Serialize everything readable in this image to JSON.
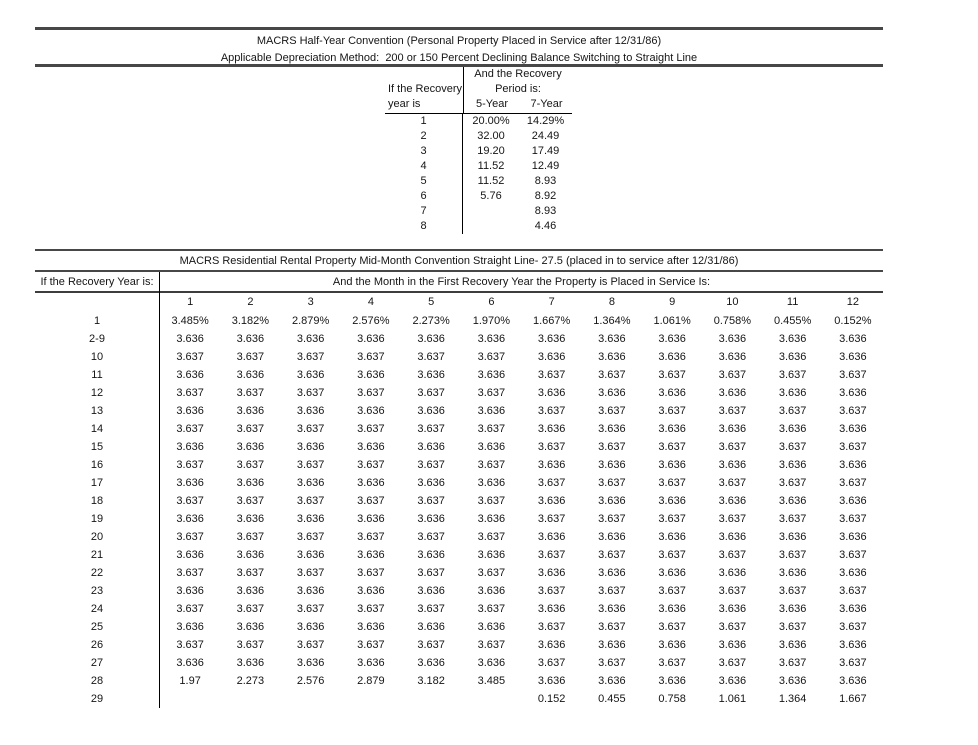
{
  "page": {
    "background": "#ffffff",
    "text_color": "#151515",
    "thick_rule_color": "#474747",
    "thin_line_color": "#000000"
  },
  "macrs_half_year": {
    "title": "MACRS Half-Year Convention (Personal Property Placed in Service after 12/31/86)",
    "method_line": "Applicable Depreciation Method:  200 or 150 Percent Declining Balance Switching to Straight Line",
    "row_header_line1": "If the Recovery",
    "row_header_line2": "year is",
    "col_header_line1": "And the Recovery",
    "col_header_line2": "Period is:",
    "columns": [
      "5-Year",
      "7-Year"
    ],
    "rows": [
      [
        "1",
        "20.00%",
        "14.29%"
      ],
      [
        "2",
        "32.00",
        "24.49"
      ],
      [
        "3",
        "19.20",
        "17.49"
      ],
      [
        "4",
        "11.52",
        "12.49"
      ],
      [
        "5",
        "11.52",
        "8.93"
      ],
      [
        "6",
        "5.76",
        "8.92"
      ],
      [
        "7",
        "",
        "8.93"
      ],
      [
        "8",
        "",
        "4.46"
      ]
    ]
  },
  "macrs_residential": {
    "title": "MACRS Residential Rental Property Mid-Month Convention Straight Line- 27.5 (placed in to service after 12/31/86)",
    "row_header": "If the Recovery Year is:",
    "col_header": "And the Month in the First Recovery Year the Property is Placed in Service Is:",
    "months": [
      "1",
      "2",
      "3",
      "4",
      "5",
      "6",
      "7",
      "8",
      "9",
      "10",
      "11",
      "12"
    ],
    "rows": [
      [
        "1",
        "3.485%",
        "3.182%",
        "2.879%",
        "2.576%",
        "2.273%",
        "1.970%",
        "1.667%",
        "1.364%",
        "1.061%",
        "0.758%",
        "0.455%",
        "0.152%"
      ],
      [
        "2-9",
        "3.636",
        "3.636",
        "3.636",
        "3.636",
        "3.636",
        "3.636",
        "3.636",
        "3.636",
        "3.636",
        "3.636",
        "3.636",
        "3.636"
      ],
      [
        "10",
        "3.637",
        "3.637",
        "3.637",
        "3.637",
        "3.637",
        "3.637",
        "3.636",
        "3.636",
        "3.636",
        "3.636",
        "3.636",
        "3.636"
      ],
      [
        "11",
        "3.636",
        "3.636",
        "3.636",
        "3.636",
        "3.636",
        "3.636",
        "3.637",
        "3.637",
        "3.637",
        "3.637",
        "3.637",
        "3.637"
      ],
      [
        "12",
        "3.637",
        "3.637",
        "3.637",
        "3.637",
        "3.637",
        "3.637",
        "3.636",
        "3.636",
        "3.636",
        "3.636",
        "3.636",
        "3.636"
      ],
      [
        "13",
        "3.636",
        "3.636",
        "3.636",
        "3.636",
        "3.636",
        "3.636",
        "3.637",
        "3.637",
        "3.637",
        "3.637",
        "3.637",
        "3.637"
      ],
      [
        "14",
        "3.637",
        "3.637",
        "3.637",
        "3.637",
        "3.637",
        "3.637",
        "3.636",
        "3.636",
        "3.636",
        "3.636",
        "3.636",
        "3.636"
      ],
      [
        "15",
        "3.636",
        "3.636",
        "3.636",
        "3.636",
        "3.636",
        "3.636",
        "3.637",
        "3.637",
        "3.637",
        "3.637",
        "3.637",
        "3.637"
      ],
      [
        "16",
        "3.637",
        "3.637",
        "3.637",
        "3.637",
        "3.637",
        "3.637",
        "3.636",
        "3.636",
        "3.636",
        "3.636",
        "3.636",
        "3.636"
      ],
      [
        "17",
        "3.636",
        "3.636",
        "3.636",
        "3.636",
        "3.636",
        "3.636",
        "3.637",
        "3.637",
        "3.637",
        "3.637",
        "3.637",
        "3.637"
      ],
      [
        "18",
        "3.637",
        "3.637",
        "3.637",
        "3.637",
        "3.637",
        "3.637",
        "3.636",
        "3.636",
        "3.636",
        "3.636",
        "3.636",
        "3.636"
      ],
      [
        "19",
        "3.636",
        "3.636",
        "3.636",
        "3.636",
        "3.636",
        "3.636",
        "3.637",
        "3.637",
        "3.637",
        "3.637",
        "3.637",
        "3.637"
      ],
      [
        "20",
        "3.637",
        "3.637",
        "3.637",
        "3.637",
        "3.637",
        "3.637",
        "3.636",
        "3.636",
        "3.636",
        "3.636",
        "3.636",
        "3.636"
      ],
      [
        "21",
        "3.636",
        "3.636",
        "3.636",
        "3.636",
        "3.636",
        "3.636",
        "3.637",
        "3.637",
        "3.637",
        "3.637",
        "3.637",
        "3.637"
      ],
      [
        "22",
        "3.637",
        "3.637",
        "3.637",
        "3.637",
        "3.637",
        "3.637",
        "3.636",
        "3.636",
        "3.636",
        "3.636",
        "3.636",
        "3.636"
      ],
      [
        "23",
        "3.636",
        "3.636",
        "3.636",
        "3.636",
        "3.636",
        "3.636",
        "3.637",
        "3.637",
        "3.637",
        "3.637",
        "3.637",
        "3.637"
      ],
      [
        "24",
        "3.637",
        "3.637",
        "3.637",
        "3.637",
        "3.637",
        "3.637",
        "3.636",
        "3.636",
        "3.636",
        "3.636",
        "3.636",
        "3.636"
      ],
      [
        "25",
        "3.636",
        "3.636",
        "3.636",
        "3.636",
        "3.636",
        "3.636",
        "3.637",
        "3.637",
        "3.637",
        "3.637",
        "3.637",
        "3.637"
      ],
      [
        "26",
        "3.637",
        "3.637",
        "3.637",
        "3.637",
        "3.637",
        "3.637",
        "3.636",
        "3.636",
        "3.636",
        "3.636",
        "3.636",
        "3.636"
      ],
      [
        "27",
        "3.636",
        "3.636",
        "3.636",
        "3.636",
        "3.636",
        "3.636",
        "3.637",
        "3.637",
        "3.637",
        "3.637",
        "3.637",
        "3.637"
      ],
      [
        "28",
        "1.97",
        "2.273",
        "2.576",
        "2.879",
        "3.182",
        "3.485",
        "3.636",
        "3.636",
        "3.636",
        "3.636",
        "3.636",
        "3.636"
      ],
      [
        "29",
        "",
        "",
        "",
        "",
        "",
        "",
        "0.152",
        "0.455",
        "0.758",
        "1.061",
        "1.364",
        "1.667"
      ]
    ]
  }
}
